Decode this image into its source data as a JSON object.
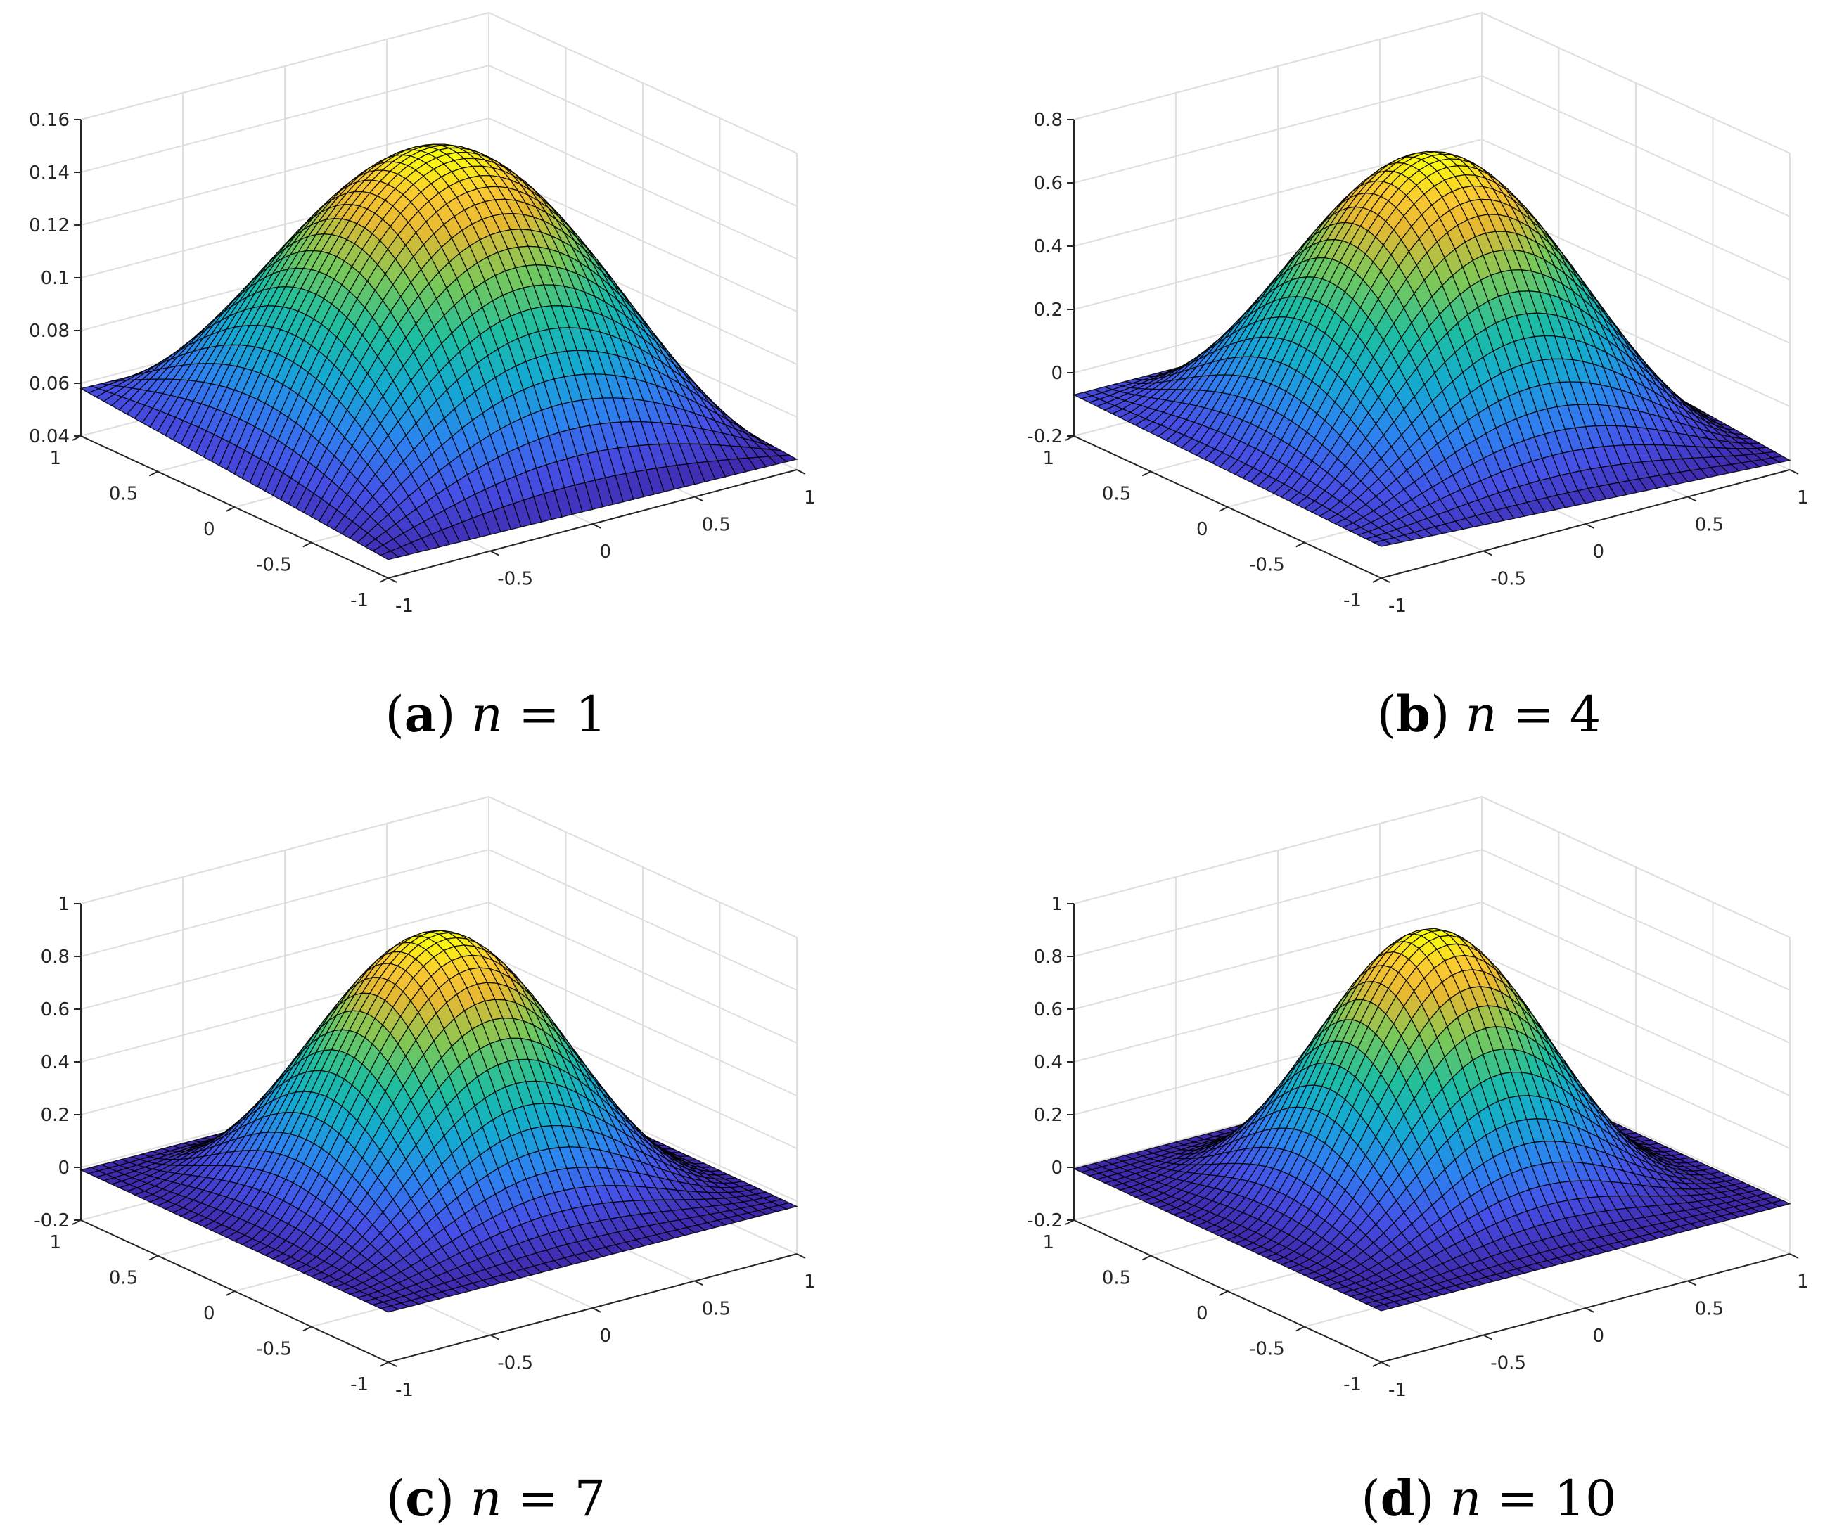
{
  "chart_data": [
    {
      "type": "surface",
      "caption": {
        "label": "(a)",
        "text": "n = 1"
      },
      "n": 1,
      "xlim": [
        -1,
        1
      ],
      "ylim": [
        -1,
        1
      ],
      "zlim": [
        0.04,
        0.16
      ],
      "x_ticks": [
        "-1",
        "-0.5",
        "0",
        "0.5",
        "1"
      ],
      "y_ticks": [
        "-1",
        "-0.5",
        "0",
        "0.5",
        "1"
      ],
      "z_ticks": [
        "0.04",
        "0.06",
        "0.08",
        "0.1",
        "0.12",
        "0.14",
        "0.16"
      ],
      "z_peak": 0.155,
      "z_corner_left": 0.058,
      "z_corner_right": 0.044,
      "z_corner_front": 0.047,
      "z_corner_back": 0.055,
      "grid": true,
      "colormap": "parula"
    },
    {
      "type": "surface",
      "caption": {
        "label": "(b)",
        "text": "n = 4"
      },
      "n": 4,
      "xlim": [
        -1,
        1
      ],
      "ylim": [
        -1,
        1
      ],
      "zlim": [
        -0.2,
        0.8
      ],
      "x_ticks": [
        "-1",
        "-0.5",
        "0",
        "0.5",
        "1"
      ],
      "y_ticks": [
        "-1",
        "-0.5",
        "0",
        "0.5",
        "1"
      ],
      "z_ticks": [
        "-0.2",
        "0",
        "0.2",
        "0.4",
        "0.6",
        "0.8"
      ],
      "z_peak": 0.74,
      "z_corner_left": -0.07,
      "z_corner_right": -0.17,
      "z_corner_front": -0.1,
      "z_corner_back": -0.07,
      "grid": true,
      "colormap": "parula"
    },
    {
      "type": "surface",
      "caption": {
        "label": "(c)",
        "text": "n = 7"
      },
      "n": 7,
      "xlim": [
        -1,
        1
      ],
      "ylim": [
        -1,
        1
      ],
      "zlim": [
        -0.2,
        1
      ],
      "x_ticks": [
        "-1",
        "-0.5",
        "0",
        "0.5",
        "1"
      ],
      "y_ticks": [
        "-1",
        "-0.5",
        "0",
        "0.5",
        "1"
      ],
      "z_ticks": [
        "-0.2",
        "0",
        "0.2",
        "0.4",
        "0.6",
        "0.8",
        "1"
      ],
      "z_peak": 0.95,
      "z_corner_left": -0.01,
      "z_corner_right": -0.02,
      "z_corner_front": -0.01,
      "z_corner_back": -0.01,
      "grid": true,
      "colormap": "parula"
    },
    {
      "type": "surface",
      "caption": {
        "label": "(d)",
        "text": "n = 10"
      },
      "n": 10,
      "xlim": [
        -1,
        1
      ],
      "ylim": [
        -1,
        1
      ],
      "zlim": [
        -0.2,
        1
      ],
      "x_ticks": [
        "-1",
        "-0.5",
        "0",
        "0.5",
        "1"
      ],
      "y_ticks": [
        "-1",
        "-0.5",
        "0",
        "0.5",
        "1"
      ],
      "z_ticks": [
        "-0.2",
        "0",
        "0.2",
        "0.4",
        "0.6",
        "0.8",
        "1"
      ],
      "z_peak": 0.96,
      "z_corner_left": -0.005,
      "z_corner_right": -0.01,
      "z_corner_front": -0.005,
      "z_corner_back": -0.005,
      "grid": true,
      "colormap": "parula"
    }
  ]
}
